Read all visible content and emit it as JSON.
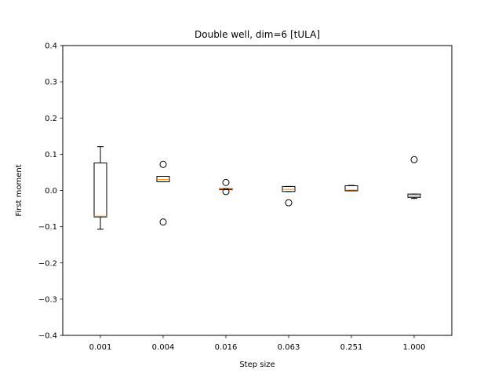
{
  "chart_data": {
    "type": "box",
    "title": "Double well, dim=6   [tULA]",
    "xlabel": "Step size",
    "ylabel": "First moment",
    "ylim": [
      -0.4,
      0.4
    ],
    "yticks": [
      -0.4,
      -0.3,
      -0.2,
      -0.1,
      0.0,
      0.1,
      0.2,
      0.3,
      0.4
    ],
    "ytick_labels": [
      "−0.4",
      "−0.3",
      "−0.2",
      "−0.1",
      "0.0",
      "0.1",
      "0.2",
      "0.3",
      "0.4"
    ],
    "categories": [
      "0.001",
      "0.004",
      "0.016",
      "0.063",
      "0.251",
      "1.000"
    ],
    "boxes": [
      {
        "whisker_low": -0.107,
        "q1": -0.073,
        "median": -0.071,
        "q3": 0.076,
        "whisker_high": 0.121,
        "outliers": []
      },
      {
        "whisker_low": 0.024,
        "q1": 0.024,
        "median": 0.03,
        "q3": 0.039,
        "whisker_high": 0.039,
        "outliers": [
          0.072,
          -0.087
        ]
      },
      {
        "whisker_low": 0.002,
        "q1": 0.002,
        "median": 0.004,
        "q3": 0.005,
        "whisker_high": 0.005,
        "outliers": [
          0.022,
          -0.003
        ]
      },
      {
        "whisker_low": -0.003,
        "q1": -0.003,
        "median": 0.003,
        "q3": 0.011,
        "whisker_high": 0.011,
        "outliers": [
          -0.034
        ]
      },
      {
        "whisker_low": -0.001,
        "q1": -0.001,
        "median": 0.001,
        "q3": 0.013,
        "whisker_high": 0.014,
        "outliers": []
      },
      {
        "whisker_low": -0.022,
        "q1": -0.019,
        "median": -0.015,
        "q3": -0.01,
        "whisker_high": -0.01,
        "outliers": [
          0.085
        ]
      }
    ],
    "box_color": "#000000",
    "median_color": "#ff7f0e",
    "grid": false
  }
}
